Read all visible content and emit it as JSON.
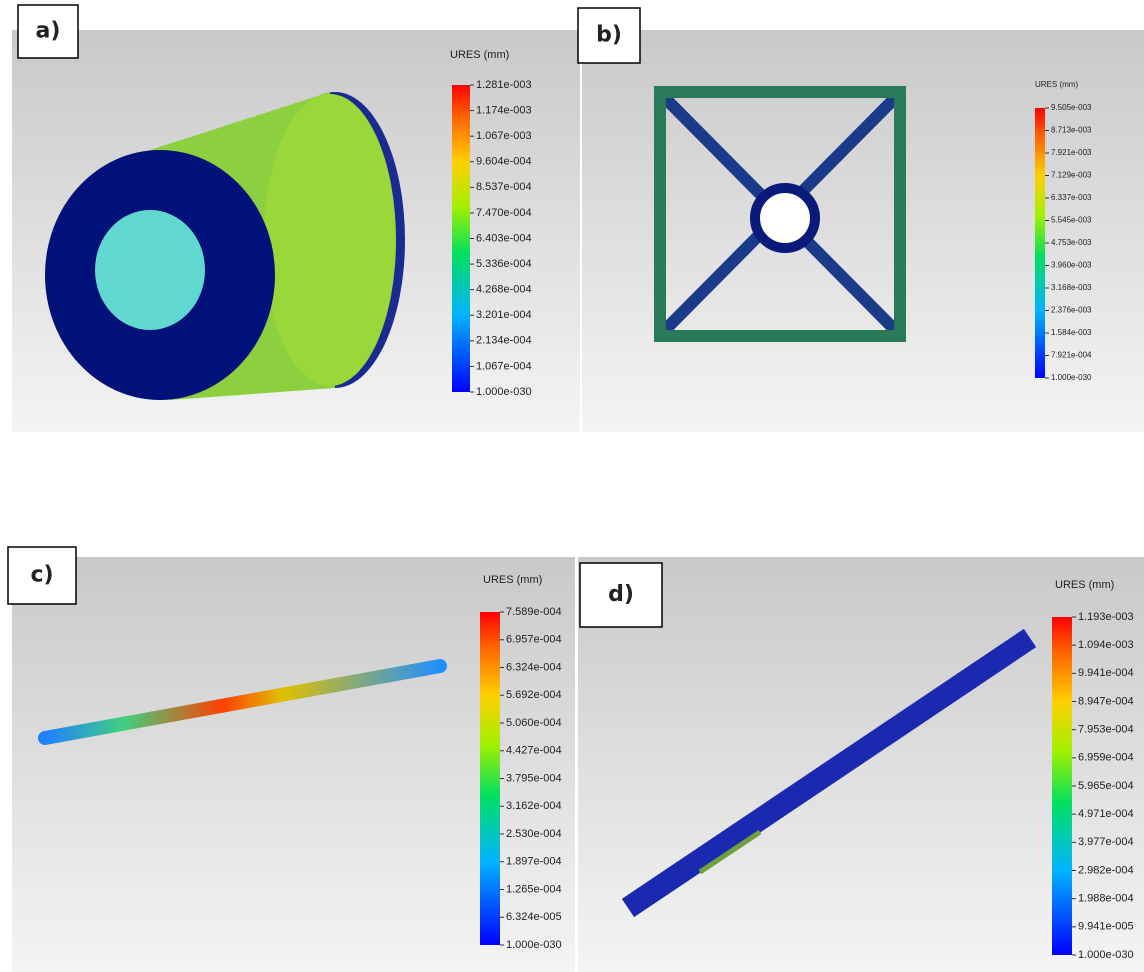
{
  "panels": [
    {
      "label": "a)",
      "legend": {
        "title": "URES (mm)",
        "ticks": [
          "1.281e-003",
          "1.174e-003",
          "1.067e-003",
          "9.604e-004",
          "8.537e-004",
          "7.470e-004",
          "6.403e-004",
          "5.336e-004",
          "4.268e-004",
          "3.201e-004",
          "2.134e-004",
          "1.067e-004",
          "1.000e-030"
        ]
      }
    },
    {
      "label": "b)",
      "legend": {
        "title": "URES (mm)",
        "ticks": [
          "9.505e-003",
          "8.713e-003",
          "7.921e-003",
          "7.129e-003",
          "6.337e-003",
          "5.545e-003",
          "4.753e-003",
          "3.960e-003",
          "3.168e-003",
          "2.376e-003",
          "1.584e-003",
          "7.921e-004",
          "1.000e-030"
        ]
      }
    },
    {
      "label": "c)",
      "legend": {
        "title": "URES (mm)",
        "ticks": [
          "7.589e-004",
          "6.957e-004",
          "6.324e-004",
          "5.692e-004",
          "5.060e-004",
          "4.427e-004",
          "3.795e-004",
          "3.162e-004",
          "2.530e-004",
          "1.897e-004",
          "1.265e-004",
          "6.324e-005",
          "1.000e-030"
        ]
      }
    },
    {
      "label": "d)",
      "legend": {
        "title": "URES (mm)",
        "ticks": [
          "1.193e-003",
          "1.094e-003",
          "9.941e-004",
          "8.947e-004",
          "7.953e-004",
          "6.959e-004",
          "5.965e-004",
          "4.971e-004",
          "3.977e-004",
          "2.982e-004",
          "1.988e-004",
          "9.941e-005",
          "1.000e-030"
        ]
      }
    }
  ]
}
